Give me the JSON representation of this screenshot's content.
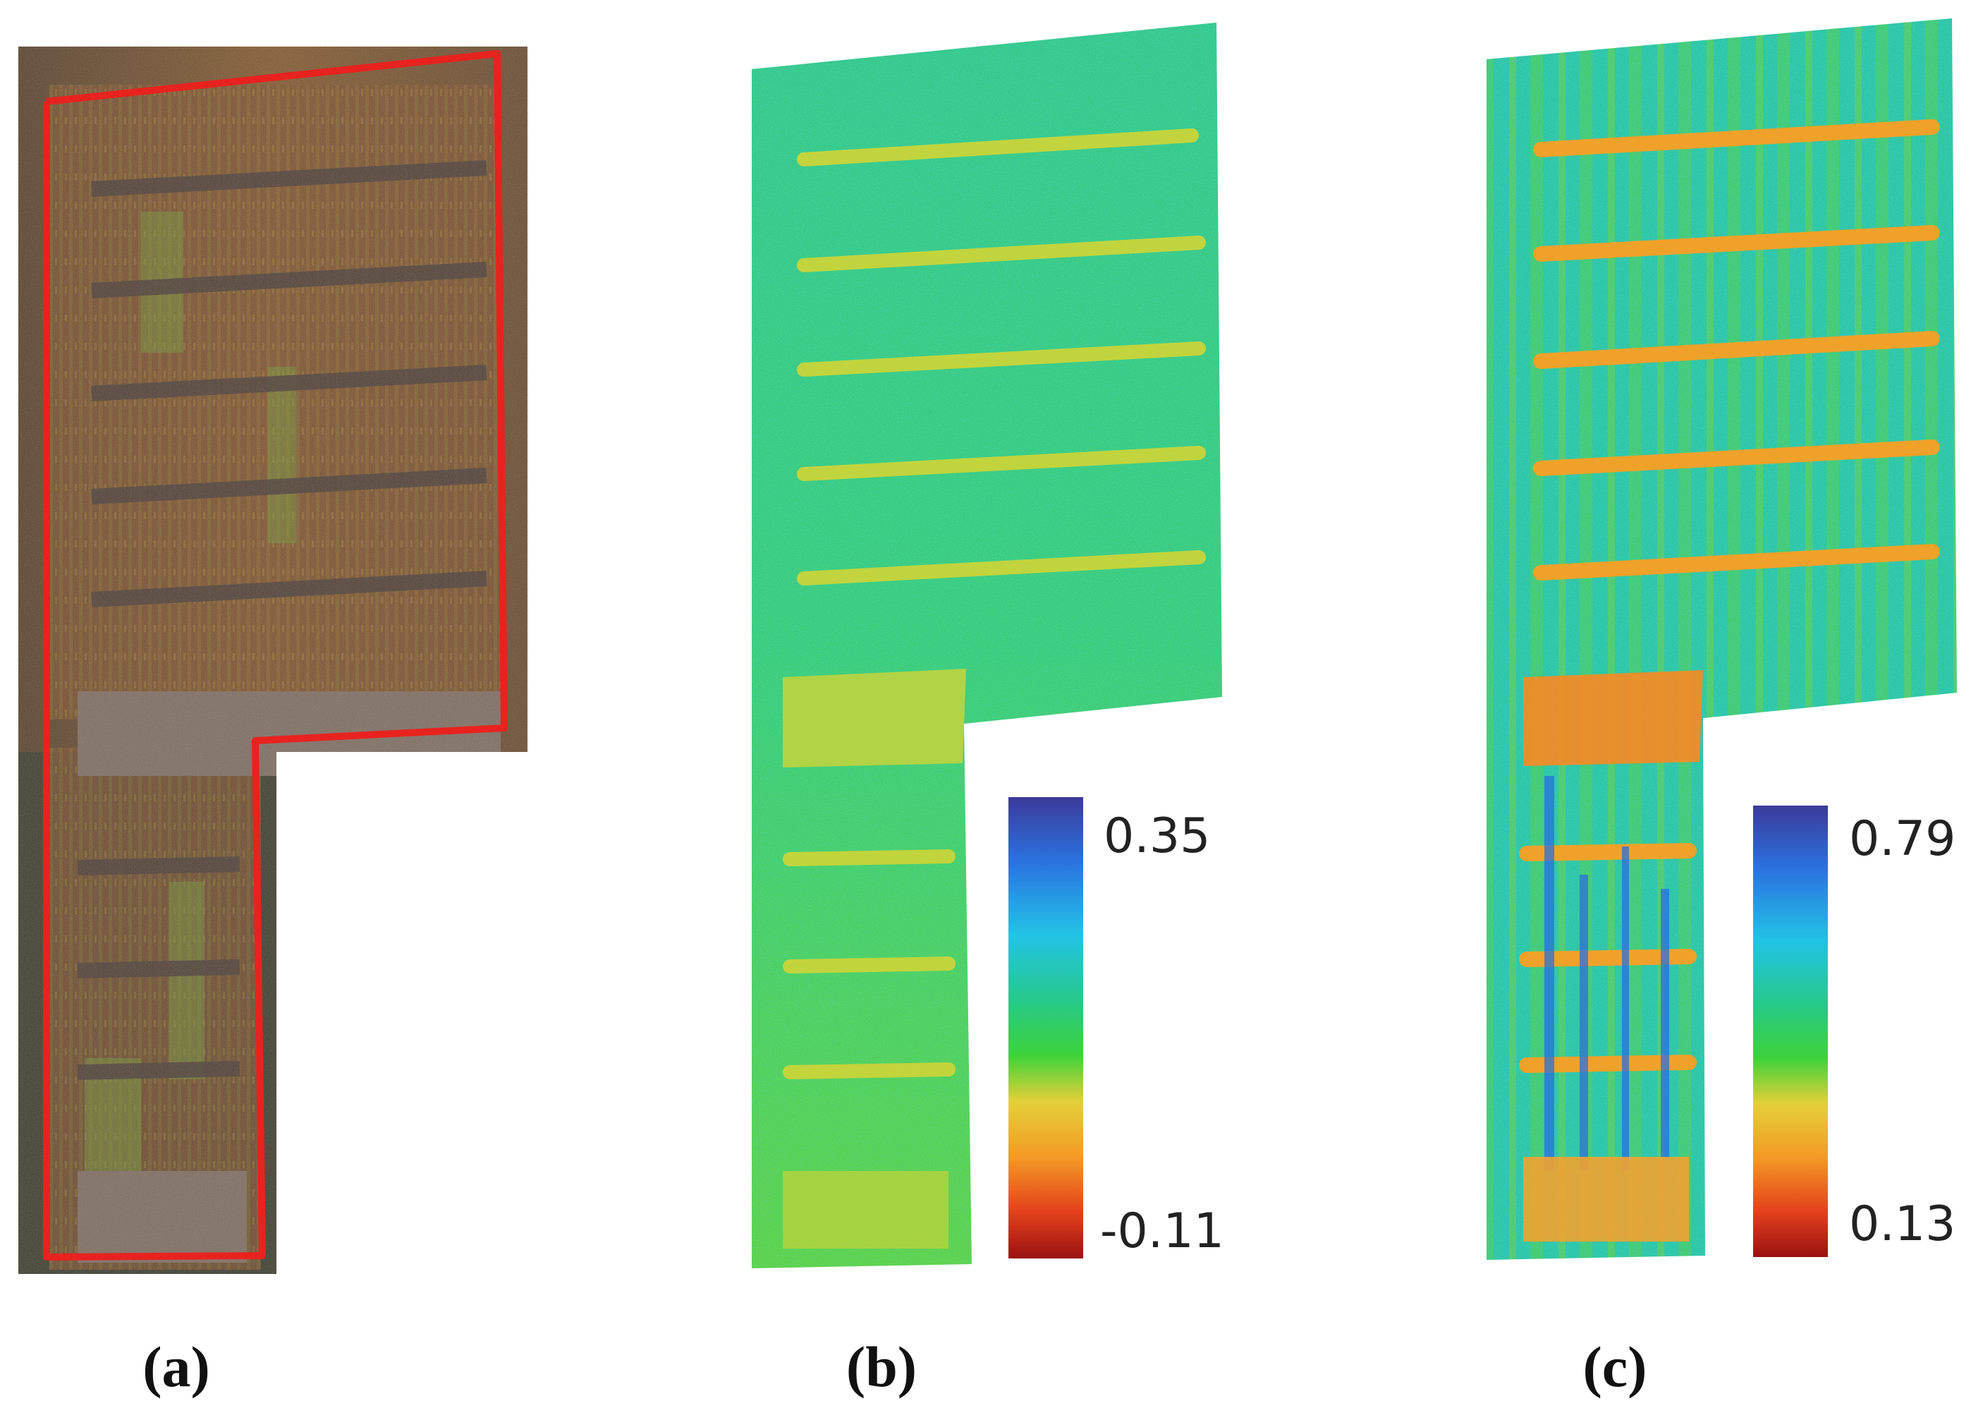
{
  "panels": [
    {
      "caption": "(a)",
      "type": "rgb-orthophoto"
    },
    {
      "caption": "(b)",
      "colorbar": {
        "max": "0.35",
        "min": "-0.11"
      }
    },
    {
      "caption": "(c)",
      "colorbar": {
        "max": "0.79",
        "min": "0.13"
      }
    }
  ],
  "colors": {
    "boundary": "#e8231f",
    "ramp": [
      "#3b3a99",
      "#2b72e0",
      "#22c3e6",
      "#26c98a",
      "#3ed23a",
      "#e4d03a",
      "#f39a25",
      "#e4401c",
      "#9a1212"
    ]
  }
}
